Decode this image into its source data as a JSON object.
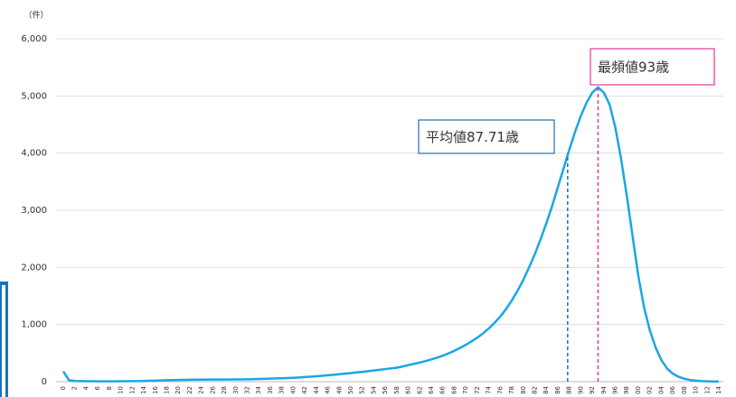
{
  "chart_data": {
    "type": "line",
    "y_unit_label": "（件）",
    "x": [
      0,
      1,
      2,
      3,
      4,
      5,
      6,
      7,
      8,
      9,
      10,
      11,
      12,
      13,
      14,
      15,
      16,
      17,
      18,
      19,
      20,
      21,
      22,
      23,
      24,
      25,
      26,
      27,
      28,
      29,
      30,
      31,
      32,
      33,
      34,
      35,
      36,
      37,
      38,
      39,
      40,
      41,
      42,
      43,
      44,
      45,
      46,
      47,
      48,
      49,
      50,
      51,
      52,
      53,
      54,
      55,
      56,
      57,
      58,
      59,
      60,
      61,
      62,
      63,
      64,
      65,
      66,
      67,
      68,
      69,
      70,
      71,
      72,
      73,
      74,
      75,
      76,
      77,
      78,
      79,
      80,
      81,
      82,
      83,
      84,
      85,
      86,
      87,
      88,
      89,
      90,
      91,
      92,
      93,
      94,
      95,
      96,
      97,
      98,
      99,
      100,
      101,
      102,
      103,
      104,
      105,
      106,
      107,
      108,
      109,
      110,
      111,
      112,
      113,
      114
    ],
    "series": [
      {
        "color": "#1ba6e4",
        "values": [
          180,
          25,
          12,
          10,
          8,
          7,
          6,
          6,
          6,
          6,
          7,
          8,
          9,
          10,
          12,
          15,
          18,
          22,
          25,
          28,
          30,
          32,
          34,
          35,
          36,
          36,
          37,
          37,
          38,
          38,
          39,
          40,
          42,
          44,
          47,
          50,
          53,
          57,
          60,
          64,
          68,
          73,
          80,
          87,
          95,
          103,
          112,
          121,
          130,
          140,
          150,
          161,
          172,
          183,
          195,
          207,
          220,
          232,
          245,
          265,
          290,
          312,
          335,
          360,
          390,
          420,
          455,
          495,
          540,
          590,
          645,
          705,
          770,
          845,
          930,
          1030,
          1140,
          1270,
          1420,
          1590,
          1780,
          2000,
          2230,
          2490,
          2770,
          3070,
          3400,
          3730,
          4060,
          4370,
          4650,
          4880,
          5060,
          5150,
          5060,
          4850,
          4450,
          3900,
          3250,
          2550,
          1850,
          1300,
          900,
          600,
          380,
          230,
          140,
          85,
          50,
          30,
          18,
          10,
          6,
          4,
          2
        ]
      }
    ],
    "xlim": [
      0,
      114
    ],
    "xticks": [
      0,
      2,
      4,
      6,
      8,
      10,
      12,
      14,
      16,
      18,
      20,
      22,
      24,
      26,
      28,
      30,
      32,
      34,
      36,
      38,
      40,
      42,
      44,
      46,
      48,
      50,
      52,
      54,
      56,
      58,
      60,
      62,
      64,
      66,
      68,
      70,
      72,
      74,
      76,
      78,
      80,
      82,
      84,
      86,
      88,
      90,
      92,
      94,
      96,
      98,
      {
        "value": 100,
        "label": "00"
      },
      {
        "value": 102,
        "label": "02"
      },
      {
        "value": 104,
        "label": "04"
      },
      {
        "value": 106,
        "label": "06"
      },
      {
        "value": 108,
        "label": "08"
      },
      {
        "value": 110,
        "label": "10"
      },
      {
        "value": 112,
        "label": "12"
      },
      {
        "value": 114,
        "label": "14"
      }
    ],
    "ylim": [
      0,
      6000
    ],
    "yticks": [
      0,
      {
        "value": 1000,
        "label": "1,000"
      },
      {
        "value": 2000,
        "label": "2,000"
      },
      {
        "value": 3000,
        "label": "3,000"
      },
      {
        "value": 4000,
        "label": "4,000"
      },
      {
        "value": 5000,
        "label": "5,000"
      },
      {
        "value": 6000,
        "label": "6,000"
      }
    ],
    "grid": true,
    "annotations": [
      {
        "text": "平均値87.71歳",
        "x": 87.71,
        "color": "#1f6fb4"
      },
      {
        "text": "最頻値93歳",
        "x": 93,
        "color": "#e8359a"
      }
    ]
  }
}
